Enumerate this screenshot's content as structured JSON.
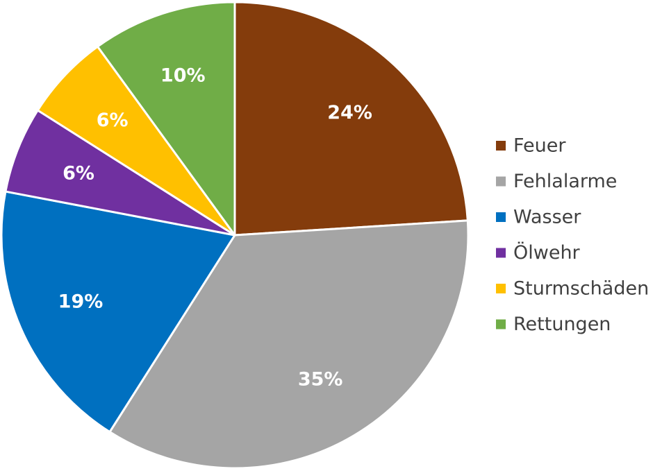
{
  "chart_data": {
    "type": "pie",
    "start_angle_deg": 0,
    "direction": "clockwise",
    "legend_position": "right",
    "slices": [
      {
        "label": "Feuer",
        "value": 24,
        "value_label": "24%",
        "color": "#843C0C"
      },
      {
        "label": "Fehlalarme",
        "value": 35,
        "value_label": "35%",
        "color": "#A5A5A5"
      },
      {
        "label": "Wasser",
        "value": 19,
        "value_label": "19%",
        "color": "#0070C0"
      },
      {
        "label": "Ölwehr",
        "value": 6,
        "value_label": "6%",
        "color": "#7030A0"
      },
      {
        "label": "Sturmschäden",
        "value": 6,
        "value_label": "6%",
        "color": "#FFC000"
      },
      {
        "label": "Rettungen",
        "value": 10,
        "value_label": "10%",
        "color": "#70AD47"
      }
    ]
  }
}
